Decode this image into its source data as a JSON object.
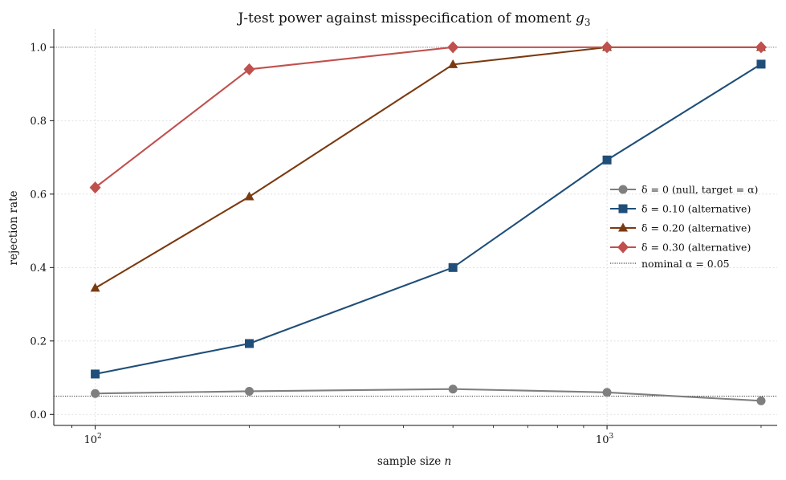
{
  "chart_data": {
    "type": "line",
    "title": "J-test power against misspecification of moment g3",
    "title_parts": {
      "text": "J-test power against misspecification of moment ",
      "math_var": "g",
      "math_sub": "3"
    },
    "xlabel": "sample size n",
    "xlabel_parts": {
      "text": "sample size ",
      "math_var": "n"
    },
    "ylabel": "rejection rate",
    "x_scale": "log",
    "xlim": [
      83,
      2150
    ],
    "ylim": [
      -0.03,
      1.05
    ],
    "x_ticks": [
      {
        "value": 100,
        "label": "10",
        "exp": "2"
      },
      {
        "value": 1000,
        "label": "10",
        "exp": "3"
      }
    ],
    "y_ticks": [
      {
        "value": 0.0,
        "label": "0.0"
      },
      {
        "value": 0.2,
        "label": "0.2"
      },
      {
        "value": 0.4,
        "label": "0.4"
      },
      {
        "value": 0.6,
        "label": "0.6"
      },
      {
        "value": 0.8,
        "label": "0.8"
      },
      {
        "value": 1.0,
        "label": "1.0"
      }
    ],
    "grid": true,
    "legend_position": "center-right",
    "x": [
      100,
      200,
      500,
      1000,
      2000
    ],
    "series": [
      {
        "name": "δ = 0 (null, target = α)",
        "marker": "circle",
        "color": "#7f7f7f",
        "values": [
          0.057,
          0.063,
          0.069,
          0.06,
          0.037
        ]
      },
      {
        "name": "δ = 0.10 (alternative)",
        "marker": "square",
        "color": "#1f4e79",
        "values": [
          0.11,
          0.193,
          0.4,
          0.693,
          0.954
        ]
      },
      {
        "name": "δ = 0.20 (alternative)",
        "marker": "triangle",
        "color": "#7b3a10",
        "values": [
          0.344,
          0.593,
          0.953,
          1.0,
          1.0
        ]
      },
      {
        "name": "δ = 0.30 (alternative)",
        "marker": "diamond",
        "color": "#c0504d",
        "values": [
          0.618,
          0.94,
          1.0,
          1.0,
          1.0
        ]
      }
    ],
    "reference_lines": [
      {
        "name": "nominal α = 0.05",
        "y": 0.05,
        "style": "dotted",
        "color": "#111111"
      },
      {
        "name": "",
        "y": 1.0,
        "style": "dotted",
        "color": "#777777"
      }
    ]
  }
}
